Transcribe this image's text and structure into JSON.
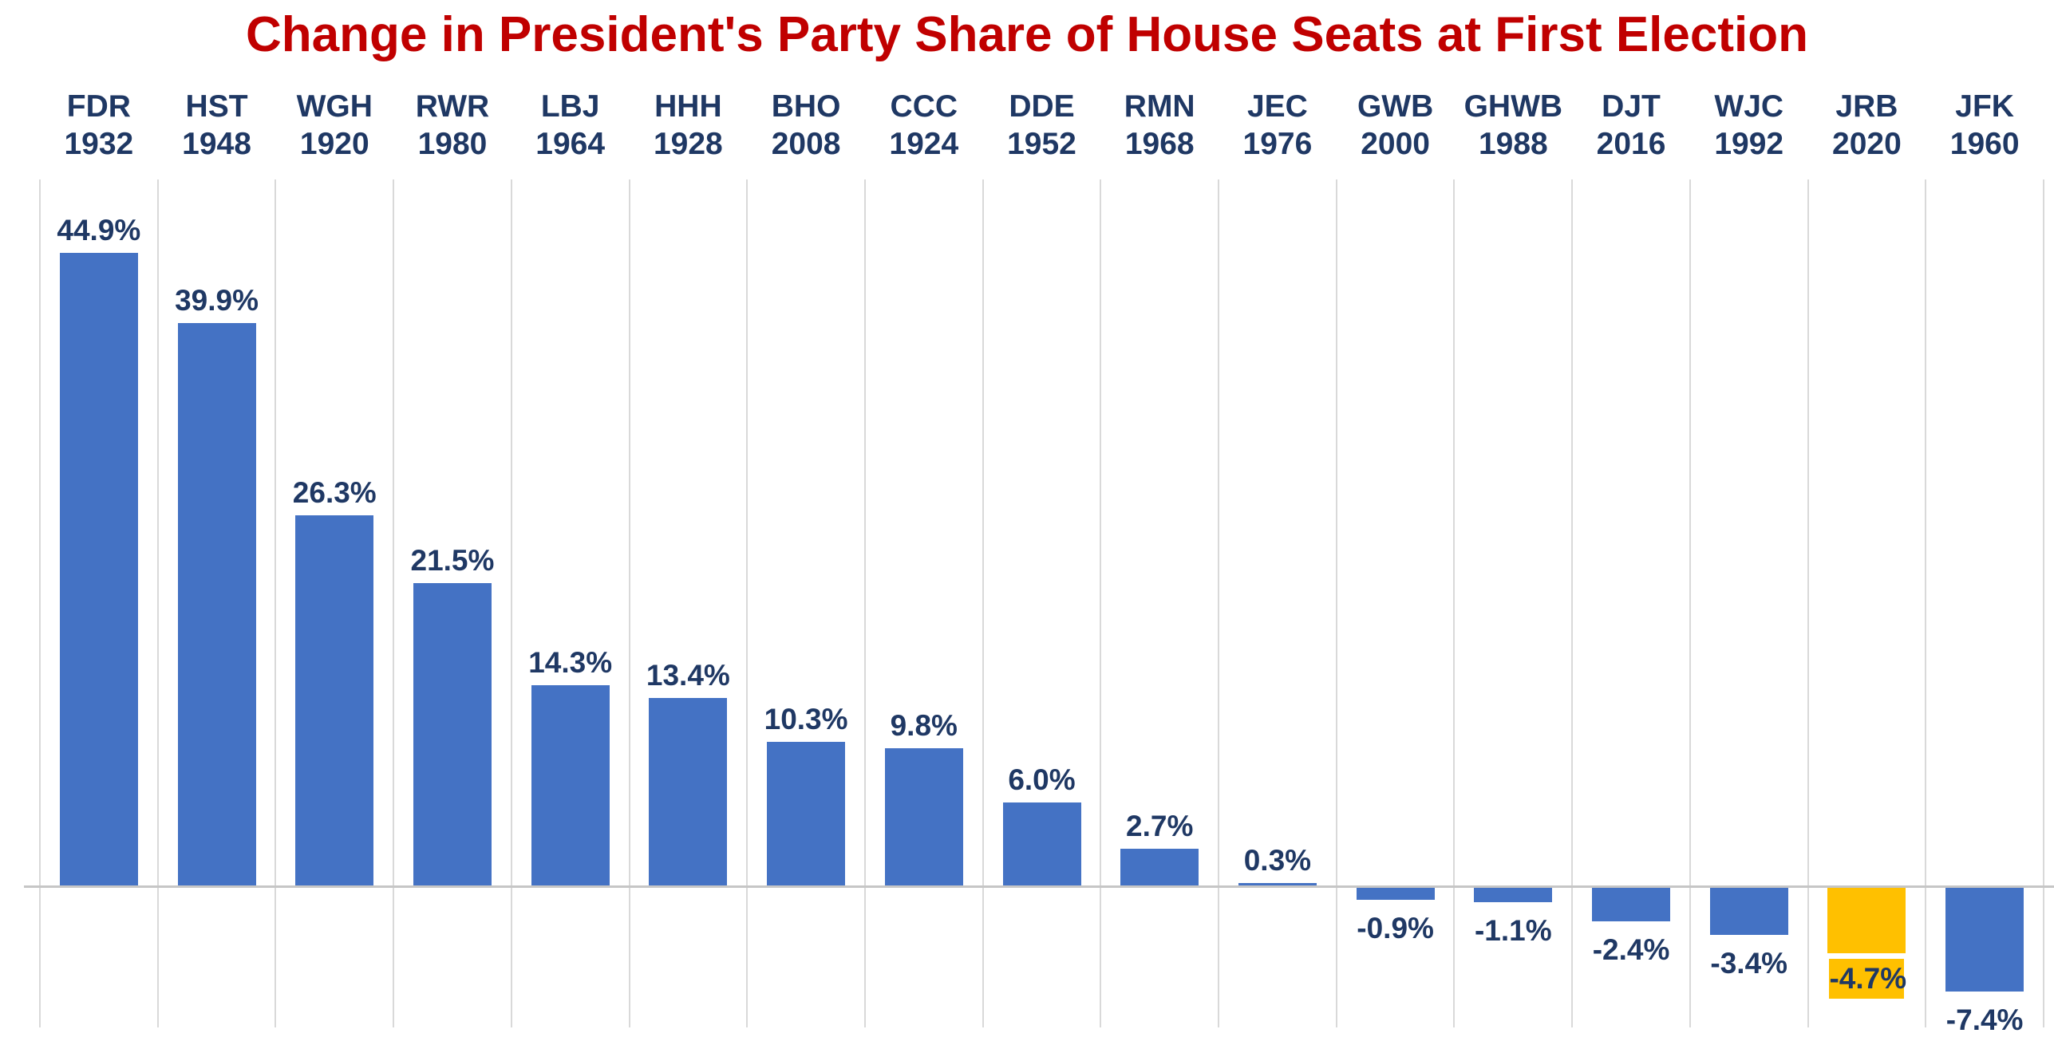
{
  "page": {
    "title": "Change in President's Party Share of House Seats at First Election"
  },
  "colors": {
    "title_text": "#C00000",
    "label_text": "#1F3864",
    "bar_default": "#4472C4",
    "bar_highlight": "#FFC000",
    "highlight_label_background": "#FFC000",
    "gridline": "#D9D9D9",
    "zero_baseline": "#C6C6C6",
    "background": "#FFFFFF"
  },
  "chart_data": {
    "type": "bar",
    "title": "Change in President's Party Share of House Seats at First Election",
    "xlabel": "",
    "ylabel": "",
    "ylim": [
      -10,
      50
    ],
    "grid": "vertical category separators only, zero baseline shown, no y-axis ticks",
    "legend": "none",
    "value_suffix": "%",
    "categories": [
      "FDR 1932",
      "HST 1948",
      "WGH 1920",
      "RWR 1980",
      "LBJ 1964",
      "HHH 1928",
      "BHO 2008",
      "CCC 1924",
      "DDE 1952",
      "RMN 1968",
      "JEC 1976",
      "GWB 2000",
      "GHWB 1988",
      "DJT 2016",
      "WJC 1992",
      "JRB 2020",
      "JFK 1960"
    ],
    "values": [
      44.9,
      39.9,
      26.3,
      21.5,
      14.3,
      13.4,
      10.3,
      9.8,
      6.0,
      2.7,
      0.3,
      -0.9,
      -1.1,
      -2.4,
      -3.4,
      -4.7,
      -7.4
    ],
    "points": [
      {
        "abbr": "FDR",
        "year": "1932",
        "value": 44.9,
        "data_label": "44.9%",
        "highlight": false
      },
      {
        "abbr": "HST",
        "year": "1948",
        "value": 39.9,
        "data_label": "39.9%",
        "highlight": false
      },
      {
        "abbr": "WGH",
        "year": "1920",
        "value": 26.3,
        "data_label": "26.3%",
        "highlight": false
      },
      {
        "abbr": "RWR",
        "year": "1980",
        "value": 21.5,
        "data_label": "21.5%",
        "highlight": false
      },
      {
        "abbr": "LBJ",
        "year": "1964",
        "value": 14.3,
        "data_label": "14.3%",
        "highlight": false
      },
      {
        "abbr": "HHH",
        "year": "1928",
        "value": 13.4,
        "data_label": "13.4%",
        "highlight": false
      },
      {
        "abbr": "BHO",
        "year": "2008",
        "value": 10.3,
        "data_label": "10.3%",
        "highlight": false
      },
      {
        "abbr": "CCC",
        "year": "1924",
        "value": 9.8,
        "data_label": "9.8%",
        "highlight": false
      },
      {
        "abbr": "DDE",
        "year": "1952",
        "value": 6.0,
        "data_label": "6.0%",
        "highlight": false
      },
      {
        "abbr": "RMN",
        "year": "1968",
        "value": 2.7,
        "data_label": "2.7%",
        "highlight": false
      },
      {
        "abbr": "JEC",
        "year": "1976",
        "value": 0.3,
        "data_label": "0.3%",
        "highlight": false
      },
      {
        "abbr": "GWB",
        "year": "2000",
        "value": -0.9,
        "data_label": "-0.9%",
        "highlight": false
      },
      {
        "abbr": "GHWB",
        "year": "1988",
        "value": -1.1,
        "data_label": "-1.1%",
        "highlight": false
      },
      {
        "abbr": "DJT",
        "year": "2016",
        "value": -2.4,
        "data_label": "-2.4%",
        "highlight": false
      },
      {
        "abbr": "WJC",
        "year": "1992",
        "value": -3.4,
        "data_label": "-3.4%",
        "highlight": false
      },
      {
        "abbr": "JRB",
        "year": "2020",
        "value": -4.7,
        "data_label": "-4.7%",
        "highlight": true
      },
      {
        "abbr": "JFK",
        "year": "1960",
        "value": -7.4,
        "data_label": "-7.4%",
        "highlight": false
      }
    ]
  }
}
